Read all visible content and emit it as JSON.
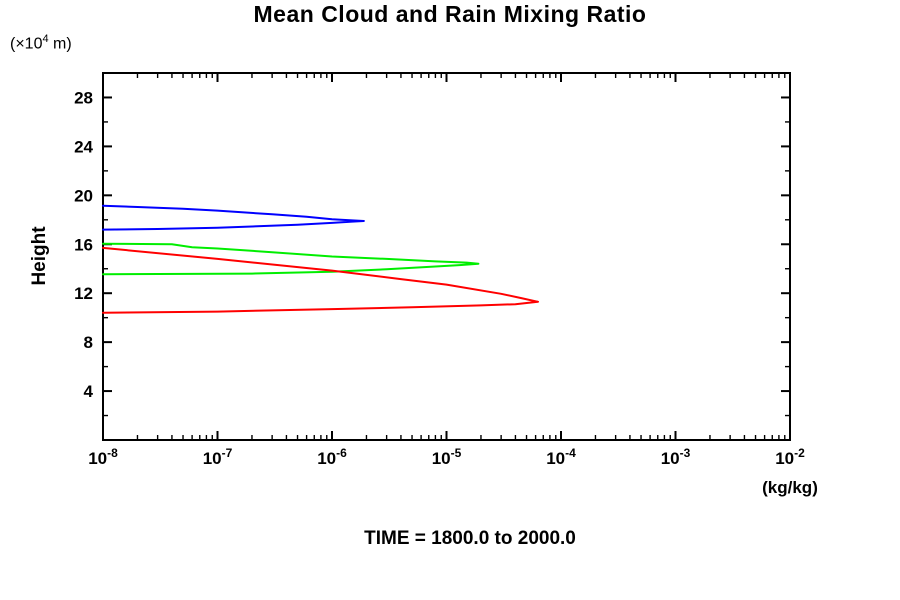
{
  "title": "Mean Cloud and Rain Mixing Ratio",
  "caption": "TIME = 1800.0 to 2000.0",
  "y_axis": {
    "axis_label": "Height",
    "unit": {
      "pre": "(×10",
      "exp": "4",
      "post": " m)"
    },
    "min": 0,
    "max": 30,
    "major_ticks": [
      4,
      8,
      12,
      16,
      20,
      24,
      28
    ],
    "minor_ticks": [
      2,
      6,
      10,
      14,
      18,
      22,
      26
    ]
  },
  "x_axis": {
    "unit_label": "(kg/kg)",
    "scale": "log",
    "decade_exponents": [
      -8,
      -7,
      -6,
      -5,
      -4,
      -3,
      -2
    ]
  },
  "chart_data": {
    "type": "line",
    "title": "Mean Cloud and Rain Mixing Ratio",
    "xlabel": "(kg/kg)",
    "ylabel": "Height (×10^4 m)",
    "x_scale": "log",
    "xlim": [
      1e-08,
      0.01
    ],
    "ylim": [
      0,
      30
    ],
    "grid": false,
    "legend": "none",
    "annotation": "TIME = 1800.0 to 2000.0",
    "series": [
      {
        "name": "blue-profile",
        "color": "#0000FF",
        "peak": {
          "x": 1.9e-06,
          "height": 17.9
        },
        "points": [
          [
            1e-08,
            19.15
          ],
          [
            2e-08,
            19.05
          ],
          [
            5e-08,
            18.9
          ],
          [
            1e-07,
            18.75
          ],
          [
            3e-07,
            18.45
          ],
          [
            6e-07,
            18.25
          ],
          [
            1e-06,
            18.05
          ],
          [
            1.5e-06,
            17.95
          ],
          [
            1.9e-06,
            17.9
          ],
          [
            1.5e-06,
            17.85
          ],
          [
            1e-06,
            17.75
          ],
          [
            5e-07,
            17.6
          ],
          [
            2e-07,
            17.45
          ],
          [
            1e-07,
            17.35
          ],
          [
            3e-08,
            17.25
          ],
          [
            1e-08,
            17.2
          ]
        ]
      },
      {
        "name": "green-profile",
        "color": "#00EE00",
        "peak": {
          "x": 1.9e-05,
          "height": 14.4
        },
        "points": [
          [
            1e-08,
            16.05
          ],
          [
            4e-08,
            16.0
          ],
          [
            6e-08,
            15.75
          ],
          [
            1e-07,
            15.65
          ],
          [
            3e-07,
            15.35
          ],
          [
            1e-06,
            15.0
          ],
          [
            3e-06,
            14.8
          ],
          [
            8e-06,
            14.6
          ],
          [
            1.5e-05,
            14.5
          ],
          [
            1.9e-05,
            14.4
          ],
          [
            1.3e-05,
            14.3
          ],
          [
            7e-06,
            14.15
          ],
          [
            3e-06,
            13.95
          ],
          [
            1e-06,
            13.75
          ],
          [
            2e-07,
            13.6
          ],
          [
            1e-08,
            13.55
          ]
        ]
      },
      {
        "name": "red-profile",
        "color": "#FF0000",
        "peak": {
          "x": 6.3e-05,
          "height": 11.3
        },
        "points": [
          [
            1e-08,
            15.7
          ],
          [
            1e-07,
            14.8
          ],
          [
            1e-06,
            13.85
          ],
          [
            4e-06,
            13.15
          ],
          [
            1e-05,
            12.7
          ],
          [
            3e-05,
            11.95
          ],
          [
            4.5e-05,
            11.6
          ],
          [
            6.3e-05,
            11.3
          ],
          [
            4e-05,
            11.1
          ],
          [
            2e-05,
            11.0
          ],
          [
            5e-06,
            10.85
          ],
          [
            1e-06,
            10.7
          ],
          [
            1e-07,
            10.5
          ],
          [
            1e-08,
            10.4
          ]
        ]
      }
    ]
  }
}
